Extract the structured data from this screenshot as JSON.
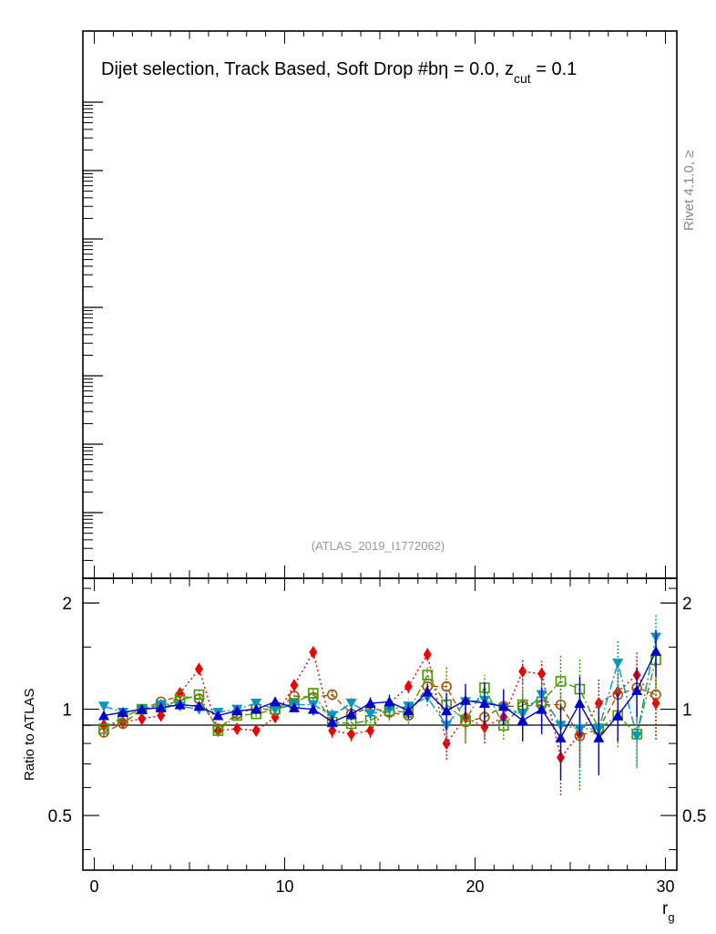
{
  "chart_data": {
    "type": "scatter",
    "title": "Dijet selection, Track Based, Soft Drop #bη = 0.0, z",
    "title_sub": "cut",
    "title_tail": " = 0.1",
    "side_label": "Rivet 4.1.0, ≥",
    "analysis_label": "(ATLAS_2019_I1772062)",
    "ratio_ylabel": "Ratio to ATLAS",
    "xlabel": "r",
    "xlabel_sub": "g",
    "xlim": [
      -0.6,
      30.6
    ],
    "ratio_ylim": [
      0.35,
      2.35
    ],
    "x_ticks": [
      "0",
      "10",
      "20",
      "30"
    ],
    "x_tick_values": [
      0,
      10,
      20,
      30
    ],
    "y_ticks": [
      "0.5",
      "1",
      "2"
    ],
    "y_tick_values": [
      0.5,
      1,
      2
    ],
    "x": [
      0.5,
      1.5,
      2.5,
      3.5,
      4.5,
      5.5,
      6.5,
      7.5,
      8.5,
      9.5,
      10.5,
      11.5,
      12.5,
      13.5,
      14.5,
      15.5,
      16.5,
      17.5,
      18.5,
      19.5,
      20.5,
      21.5,
      22.5,
      23.5,
      24.5,
      25.5,
      26.5,
      27.5,
      28.5,
      29.5
    ],
    "series": [
      {
        "name": "red-diamond",
        "color": "#ee0000",
        "marker": "diamond",
        "dash": "2,3",
        "values": [
          0.9,
          0.92,
          0.94,
          0.96,
          1.11,
          1.3,
          0.87,
          0.88,
          0.87,
          0.95,
          1.17,
          1.45,
          0.87,
          0.85,
          0.87,
          1.04,
          1.16,
          1.43,
          0.8,
          0.95,
          0.89,
          0.95,
          1.28,
          1.26,
          0.73,
          0.85,
          1.04,
          1.12,
          1.25,
          1.04
        ],
        "err": [
          0.02,
          0.02,
          0.02,
          0.02,
          0.03,
          0.03,
          0.02,
          0.02,
          0.02,
          0.03,
          0.03,
          0.04,
          0.04,
          0.04,
          0.04,
          0.05,
          0.05,
          0.06,
          0.08,
          0.08,
          0.09,
          0.09,
          0.1,
          0.11,
          0.16,
          0.16,
          0.18,
          0.18,
          0.2,
          0.22
        ]
      },
      {
        "name": "brown-circle",
        "color": "#995500",
        "marker": "circle",
        "dash": "6,4",
        "values": [
          0.86,
          0.91,
          1.0,
          1.05,
          1.09,
          1.07,
          0.88,
          0.97,
          1.01,
          0.99,
          1.09,
          1.08,
          1.1,
          0.97,
          1.01,
          0.98,
          0.96,
          1.16,
          1.16,
          0.92,
          0.95,
          1.02,
          1.02,
          1.03,
          1.03,
          0.84,
          0.88,
          1.1,
          1.15,
          1.1
        ],
        "err": [
          0.02,
          0.02,
          0.02,
          0.02,
          0.03,
          0.03,
          0.02,
          0.02,
          0.02,
          0.03,
          0.03,
          0.04,
          0.04,
          0.04,
          0.04,
          0.05,
          0.05,
          0.06,
          0.16,
          0.12,
          0.12,
          0.12,
          0.2,
          0.15,
          0.2,
          0.25,
          0.18,
          0.18,
          0.22,
          0.26
        ]
      },
      {
        "name": "green-square",
        "color": "#449900",
        "marker": "square",
        "dash": "8,3,2,3",
        "values": [
          0.88,
          0.95,
          1.0,
          1.02,
          1.06,
          1.1,
          0.87,
          0.96,
          0.97,
          1.0,
          1.04,
          1.11,
          0.92,
          0.91,
          0.93,
          0.99,
          0.98,
          1.25,
          1.03,
          0.93,
          1.15,
          0.9,
          1.03,
          1.05,
          1.2,
          1.14,
          0.88,
          0.96,
          0.85,
          1.38
        ],
        "err": [
          0.02,
          0.02,
          0.02,
          0.02,
          0.03,
          0.03,
          0.02,
          0.02,
          0.02,
          0.03,
          0.03,
          0.04,
          0.04,
          0.04,
          0.04,
          0.05,
          0.05,
          0.07,
          0.1,
          0.12,
          0.1,
          0.08,
          0.12,
          0.12,
          0.22,
          0.25,
          0.18,
          0.18,
          0.16,
          0.22
        ]
      },
      {
        "name": "cyan-downtriangle",
        "color": "#0099bb",
        "marker": "downtriangle",
        "dash": "10,3,2,3",
        "values": [
          1.02,
          0.98,
          1.0,
          1.03,
          1.02,
          1.0,
          0.98,
          1.0,
          1.04,
          1.0,
          1.03,
          1.03,
          0.96,
          1.04,
          0.97,
          1.0,
          1.02,
          1.08,
          0.9,
          1.05,
          1.06,
          1.01,
          0.97,
          1.1,
          0.9,
          0.88,
          0.88,
          1.35,
          0.84,
          1.6
        ],
        "err": [
          0.02,
          0.02,
          0.02,
          0.02,
          0.03,
          0.03,
          0.02,
          0.02,
          0.02,
          0.03,
          0.03,
          0.04,
          0.04,
          0.04,
          0.04,
          0.05,
          0.05,
          0.06,
          0.1,
          0.1,
          0.1,
          0.1,
          0.12,
          0.14,
          0.22,
          0.26,
          0.2,
          0.22,
          0.16,
          0.26
        ]
      },
      {
        "name": "blue-triangle",
        "color": "#0000cc",
        "marker": "triangle",
        "dash": "",
        "values": [
          0.96,
          0.98,
          1.0,
          1.01,
          1.03,
          1.02,
          0.96,
          0.99,
          1.0,
          1.05,
          1.01,
          1.0,
          0.92,
          0.97,
          1.04,
          1.05,
          0.99,
          1.12,
          0.99,
          1.06,
          1.04,
          1.02,
          0.93,
          1.0,
          0.83,
          1.04,
          0.83,
          0.96,
          1.13,
          1.46
        ],
        "err": [
          0.02,
          0.02,
          0.02,
          0.02,
          0.03,
          0.03,
          0.02,
          0.02,
          0.02,
          0.03,
          0.03,
          0.04,
          0.04,
          0.04,
          0.04,
          0.05,
          0.05,
          0.06,
          0.12,
          0.12,
          0.15,
          0.12,
          0.12,
          0.15,
          0.2,
          0.2,
          0.18,
          0.15,
          0.18,
          0.22
        ]
      }
    ]
  }
}
